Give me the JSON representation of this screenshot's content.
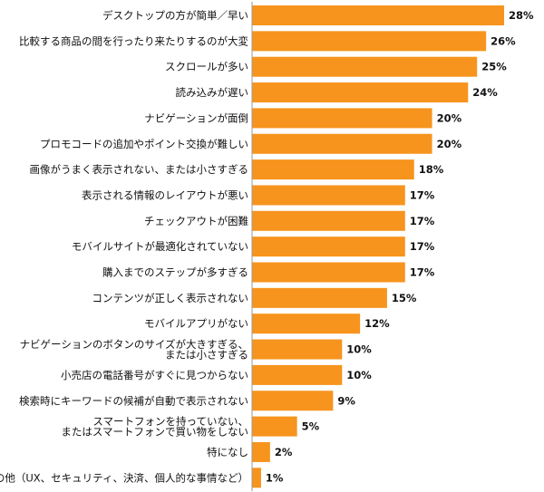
{
  "chart_data": {
    "type": "bar",
    "orientation": "horizontal",
    "categories": [
      [
        "デスクトップの方が簡単／早い"
      ],
      [
        "比較する商品の間を行ったり来たりするのが大変"
      ],
      [
        "スクロールが多い"
      ],
      [
        "読み込みが遅い"
      ],
      [
        "ナビゲーションが面倒"
      ],
      [
        "プロモコードの追加やポイント交換が難しい"
      ],
      [
        "画像がうまく表示されない、または小さすぎる"
      ],
      [
        "表示される情報のレイアウトが悪い"
      ],
      [
        "チェックアウトが困難"
      ],
      [
        "モバイルサイトが最適化されていない"
      ],
      [
        "購入までのステップが多すぎる"
      ],
      [
        "コンテンツが正しく表示されない"
      ],
      [
        "モバイルアプリがない"
      ],
      [
        "ナビゲーションのボタンのサイズが大きすぎる、",
        "または小さすぎる"
      ],
      [
        "小売店の電話番号がすぐに見つからない"
      ],
      [
        "検索時にキーワードの候補が自動で表示されない"
      ],
      [
        "スマートフォンを持っていない、",
        "またはスマートフォンで買い物をしない"
      ],
      [
        "特になし"
      ],
      [
        "その他（UX、セキュリティ、決済、個人的な事情など）"
      ]
    ],
    "values": [
      28,
      26,
      25,
      24,
      20,
      20,
      18,
      17,
      17,
      17,
      17,
      15,
      12,
      10,
      10,
      9,
      5,
      2,
      1
    ],
    "value_labels": [
      "28%",
      "26%",
      "25%",
      "24%",
      "20%",
      "20%",
      "18%",
      "17%",
      "17%",
      "17%",
      "17%",
      "15%",
      "12%",
      "10%",
      "10%",
      "9%",
      "5%",
      "2%",
      "1%"
    ],
    "unit": "%",
    "xlim": [
      0,
      28
    ],
    "bar_color": "#F7941D",
    "axis_color": "#999999",
    "grid": false,
    "legend": "none"
  }
}
